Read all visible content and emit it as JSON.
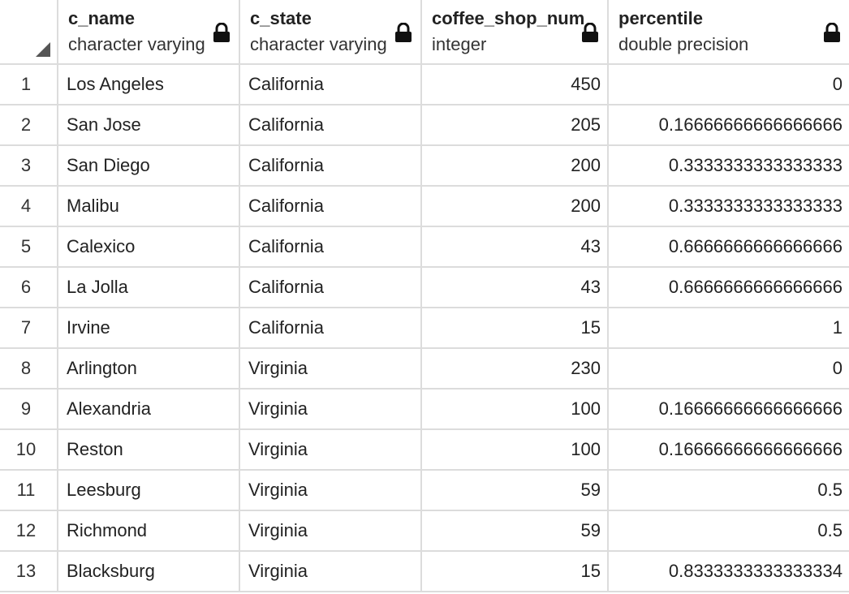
{
  "columns": [
    {
      "name": "c_name",
      "type": "character varying"
    },
    {
      "name": "c_state",
      "type": "character varying"
    },
    {
      "name": "coffee_shop_num",
      "type": "integer"
    },
    {
      "name": "percentile",
      "type": "double precision"
    }
  ],
  "rows": [
    {
      "num": "1",
      "c_name": "Los Angeles",
      "c_state": "California",
      "coffee_shop_num": "450",
      "percentile": "0"
    },
    {
      "num": "2",
      "c_name": "San Jose",
      "c_state": "California",
      "coffee_shop_num": "205",
      "percentile": "0.16666666666666666"
    },
    {
      "num": "3",
      "c_name": "San Diego",
      "c_state": "California",
      "coffee_shop_num": "200",
      "percentile": "0.3333333333333333"
    },
    {
      "num": "4",
      "c_name": "Malibu",
      "c_state": "California",
      "coffee_shop_num": "200",
      "percentile": "0.3333333333333333"
    },
    {
      "num": "5",
      "c_name": "Calexico",
      "c_state": "California",
      "coffee_shop_num": "43",
      "percentile": "0.6666666666666666"
    },
    {
      "num": "6",
      "c_name": "La Jolla",
      "c_state": "California",
      "coffee_shop_num": "43",
      "percentile": "0.6666666666666666"
    },
    {
      "num": "7",
      "c_name": "Irvine",
      "c_state": "California",
      "coffee_shop_num": "15",
      "percentile": "1"
    },
    {
      "num": "8",
      "c_name": "Arlington",
      "c_state": "Virginia",
      "coffee_shop_num": "230",
      "percentile": "0"
    },
    {
      "num": "9",
      "c_name": "Alexandria",
      "c_state": "Virginia",
      "coffee_shop_num": "100",
      "percentile": "0.16666666666666666"
    },
    {
      "num": "10",
      "c_name": "Reston",
      "c_state": "Virginia",
      "coffee_shop_num": "100",
      "percentile": "0.16666666666666666"
    },
    {
      "num": "11",
      "c_name": "Leesburg",
      "c_state": "Virginia",
      "coffee_shop_num": "59",
      "percentile": "0.5"
    },
    {
      "num": "12",
      "c_name": "Richmond",
      "c_state": "Virginia",
      "coffee_shop_num": "59",
      "percentile": "0.5"
    },
    {
      "num": "13",
      "c_name": "Blacksburg",
      "c_state": "Virginia",
      "coffee_shop_num": "15",
      "percentile": "0.8333333333333334"
    }
  ],
  "icons": {
    "lock": "lock-icon",
    "corner": "sort-corner-icon"
  },
  "colors": {
    "grid_line": "#dcdcdc",
    "text": "#222222",
    "icon": "#111111"
  }
}
